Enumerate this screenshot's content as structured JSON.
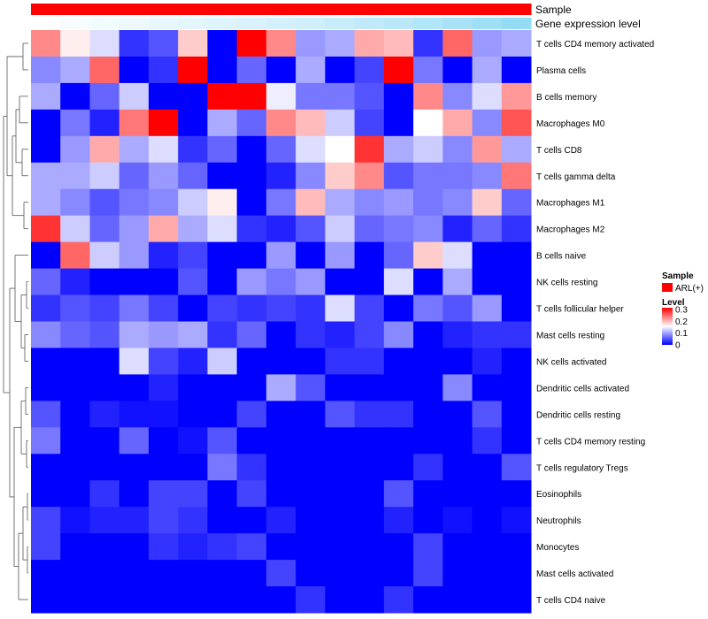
{
  "chart_data": {
    "type": "heatmap",
    "title": "",
    "annotations": [
      {
        "name": "Sample",
        "values": [
          "ARL(+)",
          "ARL(+)",
          "ARL(+)",
          "ARL(+)",
          "ARL(+)",
          "ARL(+)",
          "ARL(+)",
          "ARL(+)",
          "ARL(+)",
          "ARL(+)",
          "ARL(+)",
          "ARL(+)",
          "ARL(+)",
          "ARL(+)",
          "ARL(+)",
          "ARL(+)",
          "ARL(+)"
        ]
      },
      {
        "name": "Gene expression level",
        "values": [
          0.02,
          0.05,
          0.08,
          0.11,
          0.14,
          0.17,
          0.2,
          0.23,
          0.26,
          0.3,
          0.34,
          0.38,
          0.42,
          0.47,
          0.52,
          0.58,
          0.65
        ]
      }
    ],
    "rows": [
      "T cells CD4 memory activated",
      "Plasma cells",
      "B cells memory",
      "Macrophages M0",
      "T cells CD8",
      "T cells gamma delta",
      "Macrophages M1",
      "Macrophages M2",
      "B cells naive",
      "NK cells resting",
      "T cells follicular helper",
      "Mast cells resting",
      "NK cells activated",
      "Dendritic cells activated",
      "Dendritic cells resting",
      "T cells CD4 memory resting",
      "T cells regulatory  Tregs",
      "Eosinophils",
      "Neutrophils",
      "Monocytes",
      "Mast cells activated",
      "T cells CD4 naive"
    ],
    "values": [
      [
        0.22,
        0.16,
        0.13,
        0.03,
        0.05,
        0.18,
        0.0,
        0.3,
        0.22,
        0.09,
        0.1,
        0.2,
        0.19,
        0.03,
        0.24,
        0.09,
        0.1
      ],
      [
        0.08,
        0.1,
        0.24,
        0.0,
        0.03,
        0.3,
        0.0,
        0.06,
        0.0,
        0.1,
        0.0,
        0.04,
        0.3,
        0.07,
        0.0,
        0.1,
        0.0
      ],
      [
        0.1,
        0.0,
        0.06,
        0.12,
        0.0,
        0.0,
        0.3,
        0.3,
        0.14,
        0.07,
        0.07,
        0.05,
        0.0,
        0.22,
        0.08,
        0.13,
        0.21
      ],
      [
        0.0,
        0.07,
        0.02,
        0.23,
        0.3,
        0.0,
        0.1,
        0.06,
        0.22,
        0.19,
        0.12,
        0.04,
        0.0,
        0.15,
        0.2,
        0.08,
        0.25
      ],
      [
        0.0,
        0.09,
        0.2,
        0.1,
        0.13,
        0.03,
        0.06,
        0.0,
        0.06,
        0.13,
        0.15,
        0.27,
        0.1,
        0.12,
        0.08,
        0.21,
        0.1
      ],
      [
        0.1,
        0.1,
        0.12,
        0.06,
        0.09,
        0.06,
        0.0,
        0.0,
        0.02,
        0.08,
        0.18,
        0.22,
        0.05,
        0.07,
        0.07,
        0.08,
        0.23
      ],
      [
        0.1,
        0.08,
        0.05,
        0.07,
        0.08,
        0.12,
        0.16,
        0.0,
        0.07,
        0.19,
        0.1,
        0.08,
        0.09,
        0.07,
        0.08,
        0.18,
        0.06
      ],
      [
        0.27,
        0.12,
        0.06,
        0.09,
        0.2,
        0.1,
        0.13,
        0.03,
        0.02,
        0.05,
        0.12,
        0.06,
        0.07,
        0.08,
        0.02,
        0.06,
        0.03
      ],
      [
        0.0,
        0.24,
        0.12,
        0.09,
        0.02,
        0.04,
        0.0,
        0.0,
        0.09,
        0.0,
        0.09,
        0.0,
        0.06,
        0.18,
        0.13,
        0.0,
        0.0
      ],
      [
        0.06,
        0.02,
        0.0,
        0.0,
        0.0,
        0.05,
        0.0,
        0.09,
        0.07,
        0.09,
        0.0,
        0.0,
        0.13,
        0.0,
        0.1,
        0.0,
        0.0
      ],
      [
        0.03,
        0.05,
        0.04,
        0.07,
        0.04,
        0.0,
        0.04,
        0.03,
        0.04,
        0.03,
        0.13,
        0.04,
        0.0,
        0.07,
        0.05,
        0.09,
        0.0
      ],
      [
        0.08,
        0.06,
        0.05,
        0.1,
        0.09,
        0.1,
        0.03,
        0.06,
        0.0,
        0.03,
        0.02,
        0.04,
        0.08,
        0.0,
        0.02,
        0.03,
        0.03
      ],
      [
        0.0,
        0.0,
        0.0,
        0.13,
        0.04,
        0.02,
        0.12,
        0.0,
        0.0,
        0.0,
        0.03,
        0.03,
        0.0,
        0.0,
        0.0,
        0.02,
        0.0
      ],
      [
        0.0,
        0.0,
        0.0,
        0.0,
        0.02,
        0.0,
        0.0,
        0.0,
        0.1,
        0.05,
        0.0,
        0.0,
        0.0,
        0.0,
        0.08,
        0.0,
        0.0
      ],
      [
        0.05,
        0.0,
        0.02,
        0.01,
        0.01,
        0.0,
        0.0,
        0.04,
        0.0,
        0.0,
        0.05,
        0.03,
        0.03,
        0.0,
        0.0,
        0.05,
        0.0
      ],
      [
        0.07,
        0.0,
        0.0,
        0.06,
        0.0,
        0.01,
        0.05,
        0.0,
        0.0,
        0.0,
        0.0,
        0.0,
        0.0,
        0.0,
        0.0,
        0.03,
        0.0
      ],
      [
        0.0,
        0.0,
        0.0,
        0.0,
        0.0,
        0.0,
        0.07,
        0.03,
        0.0,
        0.0,
        0.0,
        0.0,
        0.0,
        0.03,
        0.0,
        0.0,
        0.05
      ],
      [
        0.0,
        0.0,
        0.03,
        0.0,
        0.04,
        0.04,
        0.0,
        0.04,
        0.0,
        0.0,
        0.0,
        0.0,
        0.05,
        0.0,
        0.0,
        0.0,
        0.0
      ],
      [
        0.04,
        0.01,
        0.02,
        0.02,
        0.04,
        0.03,
        0.0,
        0.0,
        0.02,
        0.0,
        0.0,
        0.0,
        0.02,
        0.0,
        0.01,
        0.0,
        0.01
      ],
      [
        0.04,
        0.0,
        0.0,
        0.0,
        0.03,
        0.02,
        0.03,
        0.04,
        0.0,
        0.0,
        0.0,
        0.0,
        0.0,
        0.04,
        0.0,
        0.0,
        0.0
      ],
      [
        0.0,
        0.0,
        0.0,
        0.0,
        0.0,
        0.0,
        0.0,
        0.0,
        0.04,
        0.0,
        0.0,
        0.0,
        0.0,
        0.04,
        0.0,
        0.0,
        0.0
      ],
      [
        0.0,
        0.0,
        0.0,
        0.0,
        0.0,
        0.0,
        0.0,
        0.0,
        0.0,
        0.03,
        0.0,
        0.0,
        0.03,
        0.0,
        0.0,
        0.0,
        0.0
      ]
    ],
    "color_scale": {
      "min": 0,
      "max": 0.3,
      "colors": [
        "#0000ff",
        "#ffffff",
        "#ff0000"
      ]
    },
    "annotation_colors": {
      "Sample": "#ff0000",
      "gene_low": "#ffffff",
      "gene_high": "#5ac8f0"
    },
    "legend": {
      "sample_title": "Sample",
      "sample_entries": [
        {
          "label": "ARL(+)",
          "color": "#ff0000"
        }
      ],
      "level_title": "Level",
      "level_ticks": [
        {
          "value": 0.3,
          "label": "0.3"
        },
        {
          "value": 0.2,
          "label": "0.2"
        },
        {
          "value": 0.1,
          "label": "0.1"
        },
        {
          "value": 0,
          "label": "0"
        }
      ],
      "position": "right"
    },
    "row_dendrogram": true
  }
}
